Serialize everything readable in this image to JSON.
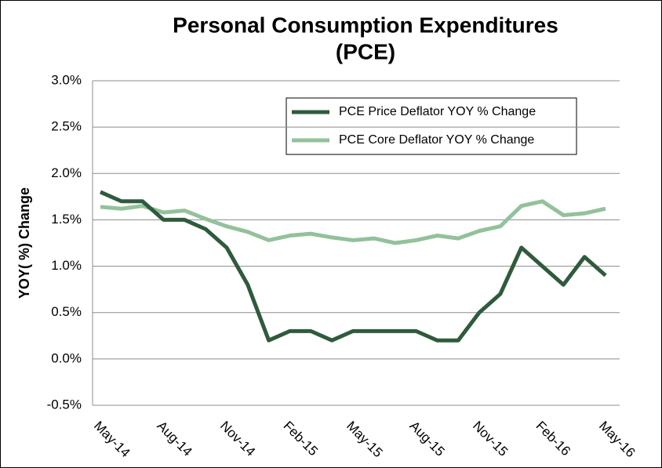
{
  "chart_data": {
    "type": "line",
    "title": [
      "Personal Consumption Expenditures",
      "(PCE)"
    ],
    "y_label": "YOY( %) Change",
    "categories": [
      "May-14",
      null,
      null,
      "Aug-14",
      null,
      null,
      "Nov-14",
      null,
      null,
      "Feb-15",
      null,
      null,
      "May-15",
      null,
      null,
      "Aug-15",
      null,
      null,
      "Nov-15",
      null,
      null,
      "Feb-16",
      null,
      null,
      "May-16"
    ],
    "series": [
      {
        "name": "PCE Price Deflator YOY % Change",
        "color": "#2f5b3c",
        "values": [
          1.8,
          1.7,
          1.7,
          1.5,
          1.5,
          1.4,
          1.2,
          0.8,
          0.2,
          0.3,
          0.3,
          0.2,
          0.3,
          0.3,
          0.3,
          0.3,
          0.2,
          0.2,
          0.5,
          0.7,
          1.2,
          1.0,
          0.8,
          1.1,
          0.9
        ]
      },
      {
        "name": "PCE Core Deflator YOY % Change",
        "color": "#93c19b",
        "values": [
          1.64,
          1.62,
          1.65,
          1.58,
          1.6,
          1.51,
          1.43,
          1.37,
          1.28,
          1.33,
          1.35,
          1.31,
          1.28,
          1.3,
          1.25,
          1.28,
          1.33,
          1.3,
          1.38,
          1.43,
          1.65,
          1.7,
          1.55,
          1.57,
          1.62
        ]
      }
    ],
    "ylim": [
      -0.5,
      3.0
    ],
    "yticks": [
      {
        "value": -0.5,
        "label": "-0.5%"
      },
      {
        "value": 0,
        "label": "0.0%"
      },
      {
        "value": 0.5,
        "label": "0.5%"
      },
      {
        "value": 1.0,
        "label": "1.0%"
      },
      {
        "value": 1.5,
        "label": "1.5%"
      },
      {
        "value": 2.0,
        "label": "2.0%"
      },
      {
        "value": 2.5,
        "label": "2.5%"
      },
      {
        "value": 3.0,
        "label": "3.0%"
      }
    ],
    "grid": true
  }
}
